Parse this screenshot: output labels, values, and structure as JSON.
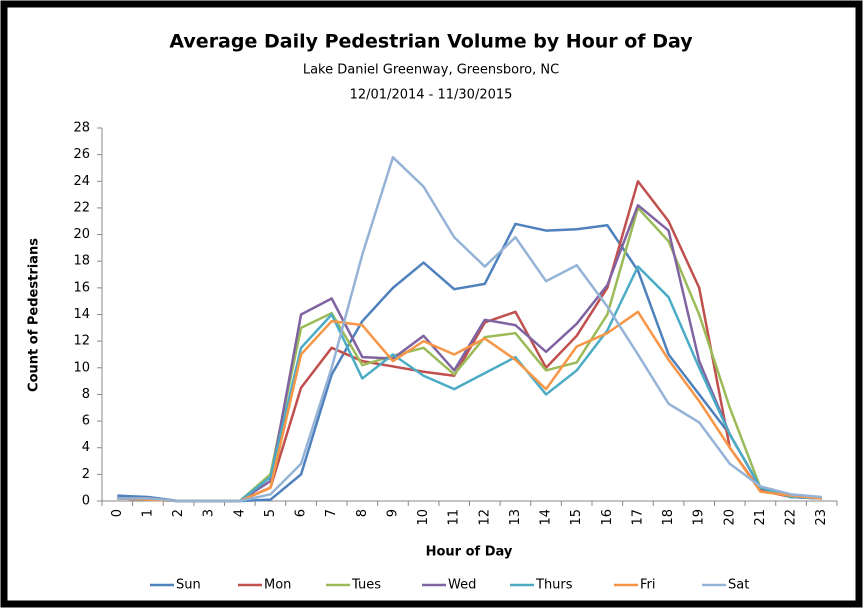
{
  "chart_data": {
    "type": "line",
    "title": "Average Daily Pedestrian Volume by Hour of Day",
    "subtitle": [
      "Lake Daniel Greenway, Greensboro, NC",
      "12/01/2014 - 11/30/2015"
    ],
    "x_label": "Hour of Day",
    "y_label": "Count of Pedestrians",
    "categories": [
      "0",
      "1",
      "2",
      "3",
      "4",
      "5",
      "6",
      "7",
      "8",
      "9",
      "10",
      "11",
      "12",
      "13",
      "14",
      "15",
      "16",
      "17",
      "18",
      "19",
      "20",
      "21",
      "22",
      "23"
    ],
    "ylim": [
      0,
      28
    ],
    "yticks": [
      0,
      2,
      4,
      6,
      8,
      10,
      12,
      14,
      16,
      18,
      20,
      22,
      24,
      26,
      28
    ],
    "grid": false,
    "legend": "bottom",
    "series": [
      {
        "name": "Sun",
        "color": "#4f81bd",
        "values": [
          0.4,
          0.3,
          0,
          0,
          0,
          0.1,
          2,
          9.5,
          13.5,
          16,
          17.9,
          15.9,
          16.3,
          20.8,
          20.3,
          20.4,
          20.7,
          17.3,
          11,
          8,
          5,
          1,
          0.3,
          0.2
        ]
      },
      {
        "name": "Mon",
        "color": "#c0504d",
        "values": [
          0.2,
          0.2,
          0,
          0,
          0,
          1,
          8.5,
          11.5,
          10.5,
          10.1,
          9.7,
          9.4,
          13.4,
          14.2,
          10,
          12.4,
          16,
          24,
          21,
          16,
          4,
          0.8,
          0.3,
          0.2
        ]
      },
      {
        "name": "Tues",
        "color": "#9bbb59",
        "values": [
          0.2,
          0.1,
          0,
          0,
          0,
          2,
          13,
          14.1,
          10.2,
          10.9,
          11.5,
          9.5,
          12.3,
          12.6,
          9.8,
          10.4,
          14,
          22,
          19.5,
          14,
          7,
          1,
          0.3,
          0.3
        ]
      },
      {
        "name": "Wed",
        "color": "#8064a2",
        "values": [
          0.2,
          0.1,
          0,
          0,
          0,
          1.5,
          14,
          15.2,
          10.8,
          10.7,
          12.4,
          9.8,
          13.6,
          13.2,
          11.2,
          13.3,
          16.2,
          22.2,
          20.3,
          10.5,
          5,
          1,
          0.3,
          0.2
        ]
      },
      {
        "name": "Thurs",
        "color": "#4bacc6",
        "values": [
          0.2,
          0.1,
          0,
          0,
          0,
          1.8,
          11.5,
          14,
          9.2,
          11,
          9.4,
          8.4,
          9.6,
          10.8,
          8,
          9.8,
          12.8,
          17.6,
          15.3,
          10,
          5,
          1,
          0.3,
          0.2
        ]
      },
      {
        "name": "Fri",
        "color": "#f79646",
        "values": [
          0.2,
          0.1,
          0,
          0,
          0,
          1,
          11,
          13.5,
          13.2,
          10.5,
          12,
          11,
          12.2,
          10.6,
          8.4,
          11.6,
          12.6,
          14.2,
          10.6,
          7.5,
          4,
          0.7,
          0.4,
          0.2
        ]
      },
      {
        "name": "Sat",
        "color": "#95b3d7",
        "values": [
          0.2,
          0.2,
          0,
          0,
          0,
          0.5,
          2.8,
          10,
          18.5,
          25.8,
          23.6,
          19.8,
          17.6,
          19.8,
          16.5,
          17.7,
          14.6,
          11,
          7.3,
          5.9,
          2.8,
          1.1,
          0.5,
          0.3
        ]
      }
    ]
  }
}
